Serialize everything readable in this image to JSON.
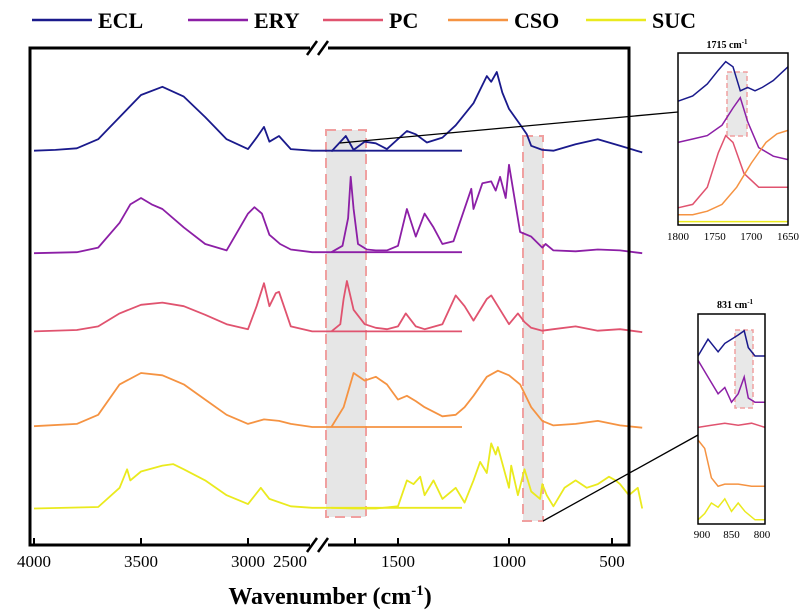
{
  "chart_data": [
    {
      "type": "line",
      "title": "",
      "xlabel": "Wavenumber (cm",
      "xlabel_sup": "-1",
      "xlabel_end": ")",
      "ylabel": "",
      "x_ticks": [
        "4000",
        "3500",
        "3000",
        "2500",
        "1500",
        "1000",
        "500"
      ],
      "axis_break": "//",
      "xlim_left": [
        4000,
        2000
      ],
      "xlim_right": [
        1800,
        400
      ],
      "legend_position": "top",
      "series": [
        {
          "name": "ECL",
          "color": "#1a1a8c",
          "x": [
            4000,
            3900,
            3800,
            3700,
            3600,
            3500,
            3400,
            3300,
            3200,
            3100,
            3000,
            2960,
            2925,
            2900,
            2855,
            2800,
            2700,
            2000,
            1800,
            1735,
            1700,
            1650,
            1600,
            1550,
            1460,
            1420,
            1370,
            1300,
            1240,
            1160,
            1100,
            1080,
            1055,
            1030,
            1000,
            950,
            920,
            900,
            850,
            800,
            700,
            600,
            500,
            400
          ],
          "y": [
            0.04,
            0.05,
            0.07,
            0.18,
            0.45,
            0.72,
            0.82,
            0.7,
            0.45,
            0.18,
            0.06,
            0.2,
            0.33,
            0.15,
            0.22,
            0.06,
            0.04,
            0.04,
            0.03,
            0.22,
            0.05,
            0.15,
            0.13,
            0.06,
            0.28,
            0.24,
            0.14,
            0.2,
            0.35,
            0.62,
            0.95,
            0.88,
            1.0,
            0.75,
            0.55,
            0.36,
            0.24,
            0.1,
            0.05,
            0.04,
            0.12,
            0.18,
            0.1,
            0.02
          ]
        },
        {
          "name": "ERY",
          "color": "#8c1fa6",
          "x": [
            4000,
            3800,
            3700,
            3600,
            3550,
            3500,
            3450,
            3400,
            3300,
            3200,
            3100,
            3000,
            2970,
            2935,
            2900,
            2880,
            2850,
            2800,
            2700,
            2000,
            1800,
            1750,
            1725,
            1713,
            1700,
            1680,
            1640,
            1600,
            1550,
            1500,
            1460,
            1420,
            1380,
            1340,
            1300,
            1250,
            1170,
            1160,
            1120,
            1080,
            1060,
            1040,
            1015,
            1000,
            950,
            900,
            850,
            835,
            800,
            700,
            600,
            500,
            400
          ],
          "y": [
            0.02,
            0.03,
            0.08,
            0.35,
            0.55,
            0.62,
            0.55,
            0.5,
            0.3,
            0.12,
            0.05,
            0.45,
            0.52,
            0.45,
            0.22,
            0.18,
            0.12,
            0.06,
            0.03,
            0.03,
            0.03,
            0.1,
            0.4,
            0.85,
            0.5,
            0.12,
            0.06,
            0.05,
            0.05,
            0.1,
            0.5,
            0.2,
            0.45,
            0.3,
            0.12,
            0.15,
            0.72,
            0.5,
            0.78,
            0.8,
            0.7,
            0.85,
            0.62,
            0.98,
            0.25,
            0.2,
            0.08,
            0.12,
            0.05,
            0.04,
            0.06,
            0.05,
            0.02
          ]
        },
        {
          "name": "PC",
          "color": "#e0536f",
          "x": [
            4000,
            3800,
            3700,
            3600,
            3500,
            3400,
            3300,
            3200,
            3100,
            3000,
            2960,
            2925,
            2900,
            2870,
            2855,
            2800,
            2700,
            2000,
            1800,
            1760,
            1745,
            1730,
            1700,
            1650,
            1600,
            1550,
            1500,
            1465,
            1420,
            1380,
            1300,
            1240,
            1200,
            1160,
            1100,
            1080,
            1050,
            1000,
            960,
            930,
            900,
            850,
            800,
            700,
            600,
            500,
            400
          ],
          "y": [
            0.05,
            0.07,
            0.12,
            0.3,
            0.42,
            0.45,
            0.4,
            0.28,
            0.15,
            0.08,
            0.4,
            0.72,
            0.4,
            0.58,
            0.6,
            0.12,
            0.05,
            0.05,
            0.05,
            0.15,
            0.5,
            0.75,
            0.35,
            0.15,
            0.1,
            0.08,
            0.12,
            0.3,
            0.12,
            0.08,
            0.15,
            0.55,
            0.4,
            0.2,
            0.5,
            0.55,
            0.4,
            0.15,
            0.3,
            0.18,
            0.1,
            0.06,
            0.08,
            0.12,
            0.06,
            0.08,
            0.04
          ]
        },
        {
          "name": "CSO",
          "color": "#f59342",
          "x": [
            4000,
            3800,
            3700,
            3600,
            3500,
            3400,
            3300,
            3200,
            3100,
            3000,
            2925,
            2855,
            2800,
            2700,
            2000,
            1800,
            1745,
            1700,
            1650,
            1600,
            1550,
            1500,
            1460,
            1420,
            1380,
            1300,
            1240,
            1200,
            1160,
            1100,
            1050,
            1000,
            950,
            900,
            850,
            800,
            700,
            600,
            500,
            400
          ],
          "y": [
            0.05,
            0.08,
            0.2,
            0.6,
            0.75,
            0.72,
            0.6,
            0.4,
            0.2,
            0.08,
            0.14,
            0.12,
            0.08,
            0.04,
            0.04,
            0.04,
            0.3,
            0.75,
            0.65,
            0.7,
            0.6,
            0.4,
            0.45,
            0.38,
            0.3,
            0.18,
            0.2,
            0.3,
            0.45,
            0.7,
            0.78,
            0.72,
            0.6,
            0.3,
            0.12,
            0.06,
            0.08,
            0.12,
            0.06,
            0.03
          ]
        },
        {
          "name": "SUC",
          "color": "#eaea1e",
          "x": [
            4000,
            3700,
            3600,
            3565,
            3550,
            3500,
            3400,
            3350,
            3300,
            3200,
            3100,
            3000,
            2940,
            2900,
            2800,
            2700,
            2000,
            1800,
            1700,
            1600,
            1500,
            1460,
            1430,
            1400,
            1380,
            1340,
            1300,
            1240,
            1200,
            1160,
            1130,
            1100,
            1080,
            1060,
            1050,
            1000,
            990,
            960,
            930,
            900,
            860,
            850,
            830,
            800,
            750,
            700,
            650,
            600,
            550,
            520,
            500,
            460,
            420,
            400
          ],
          "y": [
            0.02,
            0.04,
            0.3,
            0.55,
            0.4,
            0.52,
            0.6,
            0.62,
            0.55,
            0.4,
            0.2,
            0.08,
            0.3,
            0.15,
            0.05,
            0.03,
            0.03,
            0.03,
            0.02,
            0.02,
            0.05,
            0.4,
            0.35,
            0.45,
            0.2,
            0.4,
            0.15,
            0.3,
            0.1,
            0.4,
            0.65,
            0.5,
            0.9,
            0.75,
            0.85,
            0.3,
            0.6,
            0.2,
            0.55,
            0.25,
            0.15,
            0.35,
            0.2,
            0.05,
            0.3,
            0.4,
            0.3,
            0.35,
            0.45,
            0.4,
            0.35,
            0.2,
            0.3,
            0.02
          ]
        }
      ]
    },
    {
      "type": "line",
      "title": "1715 cm",
      "title_sup": "-1",
      "x_ticks": [
        "1800",
        "1750",
        "1700",
        "1650"
      ],
      "xlim": [
        1800,
        1650
      ],
      "series": [
        {
          "name": "ECL",
          "color": "#1a1a8c",
          "x": [
            1800,
            1780,
            1760,
            1745,
            1735,
            1725,
            1715,
            1705,
            1695,
            1685,
            1670,
            1660,
            1650
          ],
          "y": [
            0.72,
            0.75,
            0.82,
            0.9,
            0.95,
            0.92,
            0.78,
            0.8,
            0.78,
            0.8,
            0.84,
            0.88,
            0.92
          ]
        },
        {
          "name": "ERY",
          "color": "#8c1fa6",
          "x": [
            1800,
            1780,
            1760,
            1740,
            1725,
            1715,
            1705,
            1690,
            1670,
            1650
          ],
          "y": [
            0.48,
            0.5,
            0.52,
            0.58,
            0.68,
            0.74,
            0.6,
            0.45,
            0.4,
            0.38
          ]
        },
        {
          "name": "PC",
          "color": "#e0536f",
          "x": [
            1800,
            1780,
            1760,
            1745,
            1735,
            1725,
            1710,
            1690,
            1670,
            1650
          ],
          "y": [
            0.1,
            0.12,
            0.22,
            0.42,
            0.52,
            0.48,
            0.3,
            0.22,
            0.22,
            0.22
          ]
        },
        {
          "name": "CSO",
          "color": "#f59342",
          "x": [
            1800,
            1780,
            1760,
            1740,
            1720,
            1700,
            1680,
            1665,
            1650
          ],
          "y": [
            0.06,
            0.06,
            0.08,
            0.12,
            0.22,
            0.36,
            0.48,
            0.53,
            0.55
          ]
        },
        {
          "name": "SUC",
          "color": "#eaea1e",
          "x": [
            1800,
            1650
          ],
          "y": [
            0.02,
            0.02
          ]
        }
      ]
    },
    {
      "type": "line",
      "title": "831 cm",
      "title_sup": "-1",
      "x_ticks": [
        "900",
        "850",
        "800"
      ],
      "xlim": [
        900,
        800
      ],
      "series": [
        {
          "name": "ECL",
          "color": "#1a1a8c",
          "x": [
            900,
            885,
            870,
            860,
            850,
            840,
            831,
            825,
            815,
            800
          ],
          "y": [
            0.8,
            0.88,
            0.82,
            0.86,
            0.88,
            0.9,
            0.92,
            0.84,
            0.8,
            0.8
          ]
        },
        {
          "name": "ERY",
          "color": "#8c1fa6",
          "x": [
            900,
            885,
            870,
            860,
            850,
            840,
            831,
            825,
            815,
            800
          ],
          "y": [
            0.78,
            0.7,
            0.62,
            0.65,
            0.58,
            0.62,
            0.7,
            0.6,
            0.58,
            0.58
          ]
        },
        {
          "name": "PC",
          "color": "#e0536f",
          "x": [
            900,
            880,
            860,
            840,
            820,
            800
          ],
          "y": [
            0.46,
            0.47,
            0.48,
            0.47,
            0.48,
            0.46
          ]
        },
        {
          "name": "CSO",
          "color": "#f59342",
          "x": [
            900,
            890,
            880,
            870,
            860,
            840,
            820,
            800
          ],
          "y": [
            0.4,
            0.36,
            0.22,
            0.18,
            0.19,
            0.19,
            0.18,
            0.18
          ]
        },
        {
          "name": "SUC",
          "color": "#eaea1e",
          "x": [
            900,
            890,
            880,
            870,
            860,
            850,
            840,
            830,
            815,
            800
          ],
          "y": [
            0.02,
            0.05,
            0.1,
            0.08,
            0.12,
            0.06,
            0.1,
            0.06,
            0.02,
            0.02
          ]
        }
      ]
    }
  ]
}
